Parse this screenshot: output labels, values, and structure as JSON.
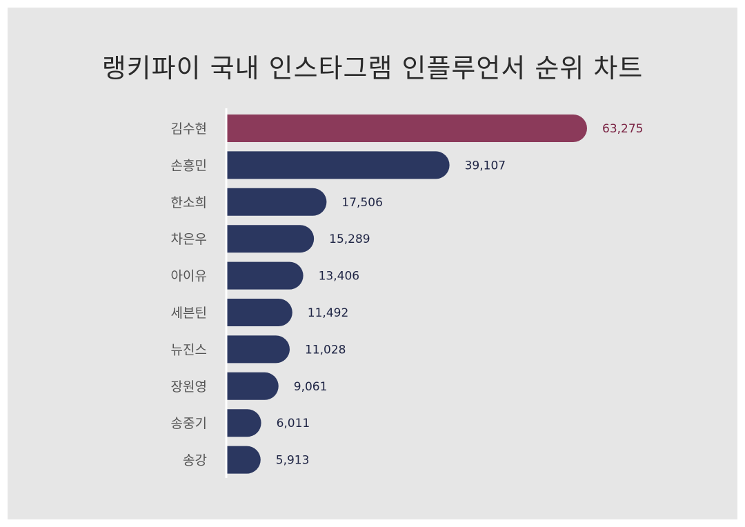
{
  "colors": {
    "highlight": "#8b3a5a",
    "highlight_text": "#7a2343",
    "bar": "#2b3760",
    "value_text": "#1e2444",
    "axis": "#ffffff",
    "background": "#e6e6e6"
  },
  "chart_data": {
    "type": "bar",
    "orientation": "horizontal",
    "title": "랭키파이 국내 인스타그램 인플루언서 순위 차트",
    "categories": [
      "김수현",
      "손흥민",
      "한소희",
      "차은우",
      "아이유",
      "세븐틴",
      "뉴진스",
      "장원영",
      "송중기",
      "송강"
    ],
    "values": [
      63275,
      39107,
      17506,
      15289,
      13406,
      11492,
      11028,
      9061,
      6011,
      5913
    ],
    "value_labels": [
      "63,275",
      "39,107",
      "17,506",
      "15,289",
      "13,406",
      "11,492",
      "11,028",
      "9,061",
      "6,011",
      "5,913"
    ],
    "highlight_index": 0,
    "xlim": [
      0,
      63275
    ],
    "grid": false,
    "legend": "none"
  }
}
